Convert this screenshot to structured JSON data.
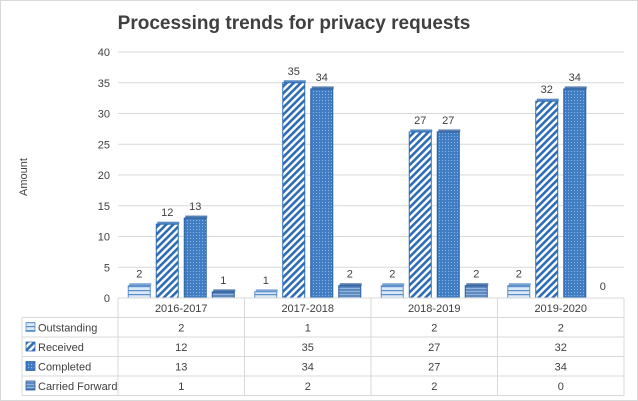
{
  "chart_data": {
    "type": "bar",
    "title": "Processing trends for privacy requests",
    "ylabel": "Amount",
    "xlabel": "",
    "ylim": [
      0,
      40
    ],
    "yticks": [
      0,
      5,
      10,
      15,
      20,
      25,
      30,
      35,
      40
    ],
    "grid": true,
    "legend": "data table below chart",
    "categories": [
      "2016-2017",
      "2017-2018",
      "2018-2019",
      "2019-2020"
    ],
    "series": [
      {
        "name": "Outstanding",
        "values": [
          2,
          1,
          2,
          2
        ],
        "color": "#9dc3e6",
        "pattern": "horizontal-stripes"
      },
      {
        "name": "Received",
        "values": [
          12,
          35,
          27,
          32
        ],
        "color": "#2e75b6",
        "pattern": "diagonal-stripes"
      },
      {
        "name": "Completed",
        "values": [
          13,
          34,
          27,
          34
        ],
        "color": "#4a86c8",
        "pattern": "dotted"
      },
      {
        "name": "Carried Forward",
        "values": [
          1,
          2,
          2,
          0
        ],
        "color": "#2e75b6",
        "pattern": "horizontal-bands"
      }
    ]
  },
  "colors": {
    "axis": "#d9d9d9",
    "grid": "#d9d9d9",
    "text": "#404040",
    "border": "#d9d9d9"
  }
}
